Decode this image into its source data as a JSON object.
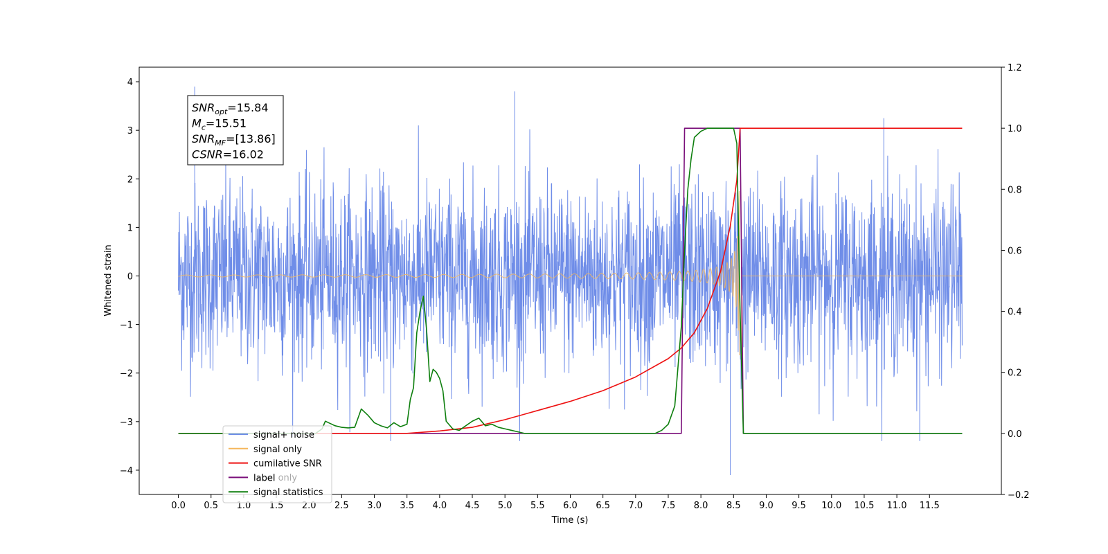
{
  "chart_data": {
    "type": "line",
    "xlabel": "Time (s)",
    "ylabel": "Whitened strain",
    "xlim": [
      -0.6,
      12.6
    ],
    "ylim": [
      -4.5,
      4.3
    ],
    "y2lim": [
      -0.2,
      1.2
    ],
    "x_ticks": [
      0.0,
      0.5,
      1.0,
      1.5,
      2.0,
      2.5,
      3.0,
      3.5,
      4.0,
      4.5,
      5.0,
      5.5,
      6.0,
      6.5,
      7.0,
      7.5,
      8.0,
      8.5,
      9.0,
      9.5,
      10.0,
      10.5,
      11.0,
      11.5
    ],
    "x_tick_labels": [
      "0.0",
      "0.5",
      "1.0",
      "1.5",
      "2.0",
      "2.5",
      "3.0",
      "3.5",
      "4.0",
      "4.5",
      "5.0",
      "5.5",
      "6.0",
      "6.5",
      "7.0",
      "7.5",
      "8.0",
      "8.5",
      "9.0",
      "9.5",
      "10.0",
      "10.5",
      "11.0",
      "11.5"
    ],
    "y_ticks": [
      -4,
      -3,
      -2,
      -1,
      0,
      1,
      2,
      3,
      4
    ],
    "y_tick_labels": [
      "−4",
      "−3",
      "−2",
      "−1",
      "0",
      "1",
      "2",
      "3",
      "4"
    ],
    "y2_ticks": [
      -0.2,
      0.0,
      0.2,
      0.4,
      0.6,
      0.8,
      1.0,
      1.2
    ],
    "y2_tick_labels": [
      "−0.2",
      "0.0",
      "0.2",
      "0.4",
      "0.6",
      "0.8",
      "1.0",
      "1.2"
    ],
    "legend_position": "lower-left",
    "colors": {
      "noise": "#6f8de8",
      "signal": "#f5b75c",
      "cumulative": "#ee1111",
      "label": "#7a0f7a",
      "statistics": "#0e7f0e"
    },
    "series": [
      {
        "name": "signal+ noise",
        "axis": "left",
        "description_points": {
          "x_range": [
            0.0,
            12.0
          ],
          "amplitude_range": [
            -4.1,
            3.9
          ],
          "spikes": [
            [
              0.25,
              3.9
            ],
            [
              5.15,
              3.8
            ],
            [
              8.45,
              -4.1
            ],
            [
              11.35,
              -3.4
            ],
            [
              3.25,
              -3.4
            ],
            [
              10.8,
              3.25
            ]
          ]
        }
      },
      {
        "name": "signal only",
        "axis": "left",
        "chirp": {
          "start": 0.0,
          "merger": 8.6,
          "end": 12.0,
          "peak_amplitude": 2.8
        }
      },
      {
        "name": "cumilative SNR",
        "axis": "right",
        "x": [
          0.0,
          3.0,
          3.5,
          4.0,
          4.5,
          5.0,
          5.5,
          6.0,
          6.5,
          7.0,
          7.5,
          7.7,
          7.9,
          8.1,
          8.3,
          8.45,
          8.55,
          8.6,
          9.0,
          10.0,
          11.0,
          12.0
        ],
        "values": [
          0.0,
          0.0,
          0.0,
          0.008,
          0.02,
          0.045,
          0.075,
          0.105,
          0.14,
          0.185,
          0.245,
          0.28,
          0.33,
          0.41,
          0.53,
          0.68,
          0.83,
          1.0,
          1.0,
          1.0,
          1.0,
          1.0
        ]
      },
      {
        "name": "label",
        "axis": "right",
        "x": [
          0.0,
          7.7,
          7.75,
          8.6,
          8.65,
          12.0
        ],
        "values": [
          0.0,
          0.0,
          1.0,
          1.0,
          0.0,
          0.0
        ]
      },
      {
        "name": "signal statistics",
        "axis": "right",
        "x": [
          0.0,
          2.1,
          2.2,
          2.25,
          2.3,
          2.4,
          2.5,
          2.6,
          2.7,
          2.8,
          2.9,
          3.0,
          3.1,
          3.2,
          3.3,
          3.4,
          3.5,
          3.55,
          3.6,
          3.65,
          3.7,
          3.75,
          3.8,
          3.85,
          3.9,
          3.95,
          4.0,
          4.05,
          4.1,
          4.2,
          4.3,
          4.4,
          4.5,
          4.6,
          4.7,
          4.8,
          4.9,
          5.0,
          5.1,
          5.2,
          5.3,
          5.4,
          5.6,
          6.0,
          7.0,
          7.3,
          7.4,
          7.5,
          7.6,
          7.7,
          7.75,
          7.8,
          7.85,
          7.9,
          8.0,
          8.1,
          8.5,
          8.55,
          8.6,
          8.65,
          12.0
        ],
        "values": [
          0.0,
          0.0,
          0.015,
          0.04,
          0.035,
          0.025,
          0.02,
          0.018,
          0.02,
          0.08,
          0.06,
          0.035,
          0.025,
          0.018,
          0.035,
          0.022,
          0.03,
          0.11,
          0.15,
          0.33,
          0.4,
          0.45,
          0.34,
          0.17,
          0.21,
          0.2,
          0.18,
          0.14,
          0.04,
          0.015,
          0.01,
          0.025,
          0.04,
          0.05,
          0.025,
          0.03,
          0.02,
          0.015,
          0.01,
          0.005,
          0.0,
          0.0,
          0.0,
          0.0,
          0.0,
          0.0,
          0.01,
          0.03,
          0.09,
          0.35,
          0.6,
          0.8,
          0.9,
          0.97,
          0.99,
          1.0,
          1.0,
          0.95,
          0.4,
          0.0,
          0.0
        ]
      }
    ],
    "annotation": {
      "lines": [
        {
          "sym": "SNR",
          "sub": "opt",
          "text": "=15.84"
        },
        {
          "sym": "M",
          "sub": "c",
          "text": "=15.51"
        },
        {
          "sym": "SNR",
          "sub": "MF",
          "text": "=[13.86]"
        },
        {
          "sym": "CSNR",
          "sub": "",
          "text": "=16.02"
        }
      ]
    },
    "legend": [
      {
        "label": "signal+ noise",
        "color": "#6f8de8"
      },
      {
        "label": "signal only",
        "color": "#f5b75c"
      },
      {
        "label": "cumilative SNR",
        "color": "#ee1111"
      },
      {
        "label": "label",
        "color": "#7a0f7a"
      },
      {
        "label": "signal statistics",
        "color": "#0e7f0e"
      }
    ],
    "hidden_legend_text": "label only"
  }
}
